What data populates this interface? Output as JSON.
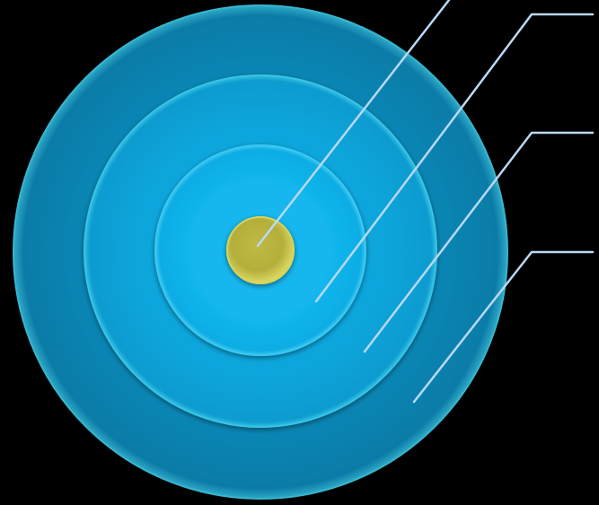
{
  "diagram": {
    "background": "#000000",
    "rings": [
      {
        "id": "outer",
        "color": "#0a86b4",
        "edge": "#37b6cf"
      },
      {
        "id": "middle",
        "color": "#0ba3d9",
        "edge": "#38c3e6"
      },
      {
        "id": "inner",
        "color": "#11b5ec",
        "edge": "#3ac7f0"
      },
      {
        "id": "core",
        "color": "#b9b33f",
        "edge": "#d8d35a"
      }
    ],
    "leader_color": "#b9d8f4",
    "callouts": [
      {
        "target": "core",
        "label": ""
      },
      {
        "target": "inner",
        "label": ""
      },
      {
        "target": "middle",
        "label": ""
      },
      {
        "target": "outer",
        "label": ""
      }
    ]
  }
}
